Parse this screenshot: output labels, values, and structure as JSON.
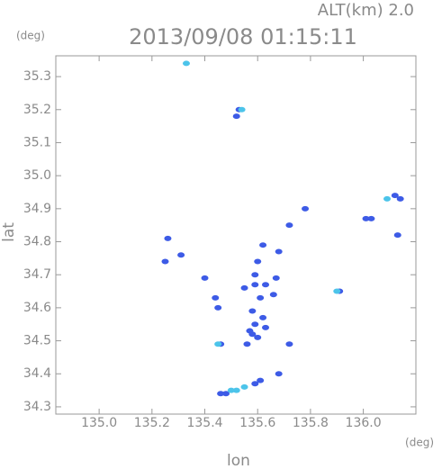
{
  "chart_data": {
    "type": "scatter",
    "title": "2013/09/08 01:15:11",
    "subtitle": "ALT(km) 2.0",
    "x_label": "lon",
    "y_label": "lat",
    "x_unit": "(deg)",
    "y_unit": "(deg)",
    "xlim": [
      134.836,
      136.199
    ],
    "ylim": [
      34.278,
      35.363
    ],
    "xticks": [
      {
        "value": 135,
        "label": "135.0"
      },
      135.2,
      135.4,
      135.6,
      135.8,
      {
        "value": 136,
        "label": "136.0"
      }
    ],
    "yticks": [
      34.3,
      34.4,
      34.5,
      34.6,
      34.7,
      34.8,
      34.9,
      {
        "value": 35,
        "label": "35.0"
      },
      35.1,
      35.2,
      35.3
    ],
    "series": [
      {
        "color": "#3d5be6",
        "x": [
          135.53,
          135.52,
          136.12,
          136.14,
          136.03,
          136.01,
          135.78,
          135.72,
          135.26,
          135.62,
          135.68,
          135.6,
          135.31,
          135.25,
          135.59,
          135.67,
          135.4,
          135.44,
          135.55,
          135.59,
          135.63,
          135.61,
          135.66,
          135.45,
          135.58,
          135.62,
          135.59,
          135.63,
          135.57,
          135.58,
          135.6,
          135.56,
          135.46,
          135.72,
          135.91,
          136.13,
          135.68,
          135.61,
          135.59,
          135.48,
          135.46
        ],
        "y": [
          35.2,
          35.18,
          34.94,
          34.93,
          34.87,
          34.87,
          34.9,
          34.85,
          34.81,
          34.79,
          34.77,
          34.74,
          34.76,
          34.74,
          34.7,
          34.69,
          34.69,
          34.63,
          34.66,
          34.67,
          34.67,
          34.63,
          34.64,
          34.6,
          34.59,
          34.57,
          34.55,
          34.54,
          34.53,
          34.52,
          34.51,
          34.49,
          34.49,
          34.49,
          34.65,
          34.82,
          34.4,
          34.38,
          34.37,
          34.34,
          34.34
        ]
      },
      {
        "color": "#4cc4ea",
        "x": [
          135.33,
          135.5,
          135.55,
          135.52,
          135.9,
          135.45,
          136.09,
          135.54
        ],
        "y": [
          35.34,
          34.35,
          34.36,
          34.35,
          34.65,
          34.49,
          34.93,
          35.2
        ]
      }
    ]
  }
}
